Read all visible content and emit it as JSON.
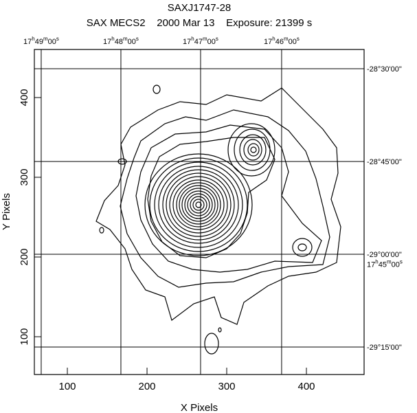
{
  "chart_data": {
    "type": "contour",
    "title": "SAXJ1747-28",
    "subtitle": "SAX MECS2    2000 Mar 13    Exposure: 21399 s",
    "x_label": "X Pixels",
    "y_label": "Y Pixels",
    "xlim": [
      58.6,
      472.4
    ],
    "ylim": [
      52.6,
      460.3
    ],
    "xticks": [
      100,
      200,
      300,
      400
    ],
    "yticks": [
      100,
      200,
      300,
      400
    ],
    "x2ticks": [
      {
        "value": 67.2,
        "label": "17h49m00s"
      },
      {
        "value": 167.2,
        "label": "17h48m00s"
      },
      {
        "value": 267.2,
        "label": "17h47m00s"
      },
      {
        "value": 368.9,
        "label": "17h46m00s"
      }
    ],
    "y2ticks": [
      {
        "value": 436.2,
        "label": "-28°30'00\""
      },
      {
        "value": 319.8,
        "label": "-28°45'00\""
      },
      {
        "value": 203.4,
        "label": "-29°00'00\""
      },
      {
        "value": 87.1,
        "label": "-29°15'00\""
      }
    ],
    "side_label": {
      "value": 191.0,
      "label": "17h45m00s"
    },
    "grid": true
  }
}
